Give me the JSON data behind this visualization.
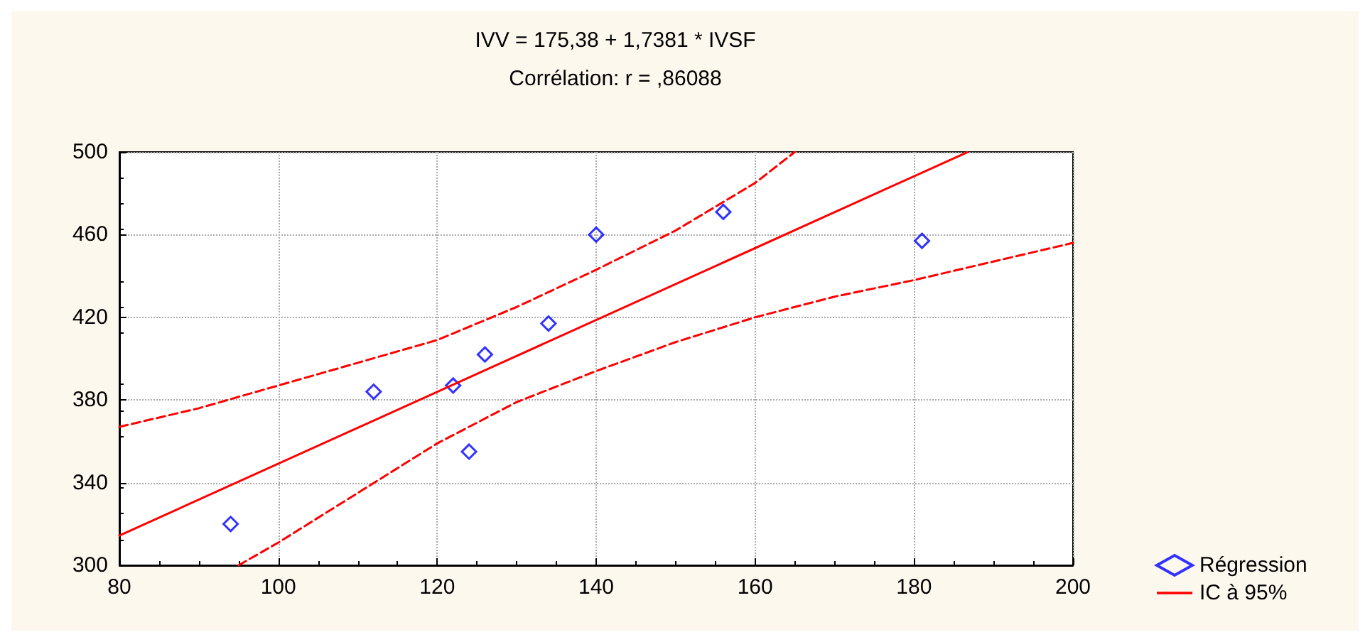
{
  "chart_data": {
    "type": "scatter",
    "title": "IVV = 175,38 + 1,7381 * IVSF",
    "subtitle": "Corrélation: r = ,86088",
    "xlim": [
      80,
      200
    ],
    "xticks": [
      80,
      100,
      120,
      140,
      160,
      180,
      200
    ],
    "ylim": [
      300,
      500
    ],
    "yticks": [
      300,
      340,
      380,
      420,
      460,
      500
    ],
    "grid": true,
    "legend": "bottom right",
    "series": [
      {
        "name": "Régression",
        "marker": "diamond",
        "color": "#0000ff",
        "x": [
          94,
          112,
          122,
          124,
          126,
          134,
          140,
          156,
          181
        ],
        "values": [
          320,
          384,
          387,
          355,
          402,
          417,
          460,
          471,
          457
        ]
      },
      {
        "type": "line",
        "marker": "none",
        "color": "#ff0000",
        "line_style": "solid",
        "x": [
          80,
          186.7
        ],
        "values": [
          314.4,
          499.9
        ]
      },
      {
        "name": "IC à 95%",
        "type": "line",
        "marker": "none",
        "color": "#ff0000",
        "line_style": "dashed",
        "x": [
          80,
          90,
          100,
          110,
          120,
          130,
          140,
          150,
          160,
          165
        ],
        "values": [
          367,
          376,
          387,
          398,
          409,
          425,
          443,
          462,
          485,
          500
        ]
      },
      {
        "type": "line",
        "marker": "none",
        "color": "#ff0000",
        "line_style": "dashed",
        "x": [
          95,
          100,
          110,
          120,
          130,
          140,
          150,
          160,
          170,
          180,
          190,
          200
        ],
        "values": [
          300,
          311,
          335,
          359,
          379,
          394,
          408,
          420,
          430,
          438,
          447,
          456
        ]
      }
    ]
  }
}
